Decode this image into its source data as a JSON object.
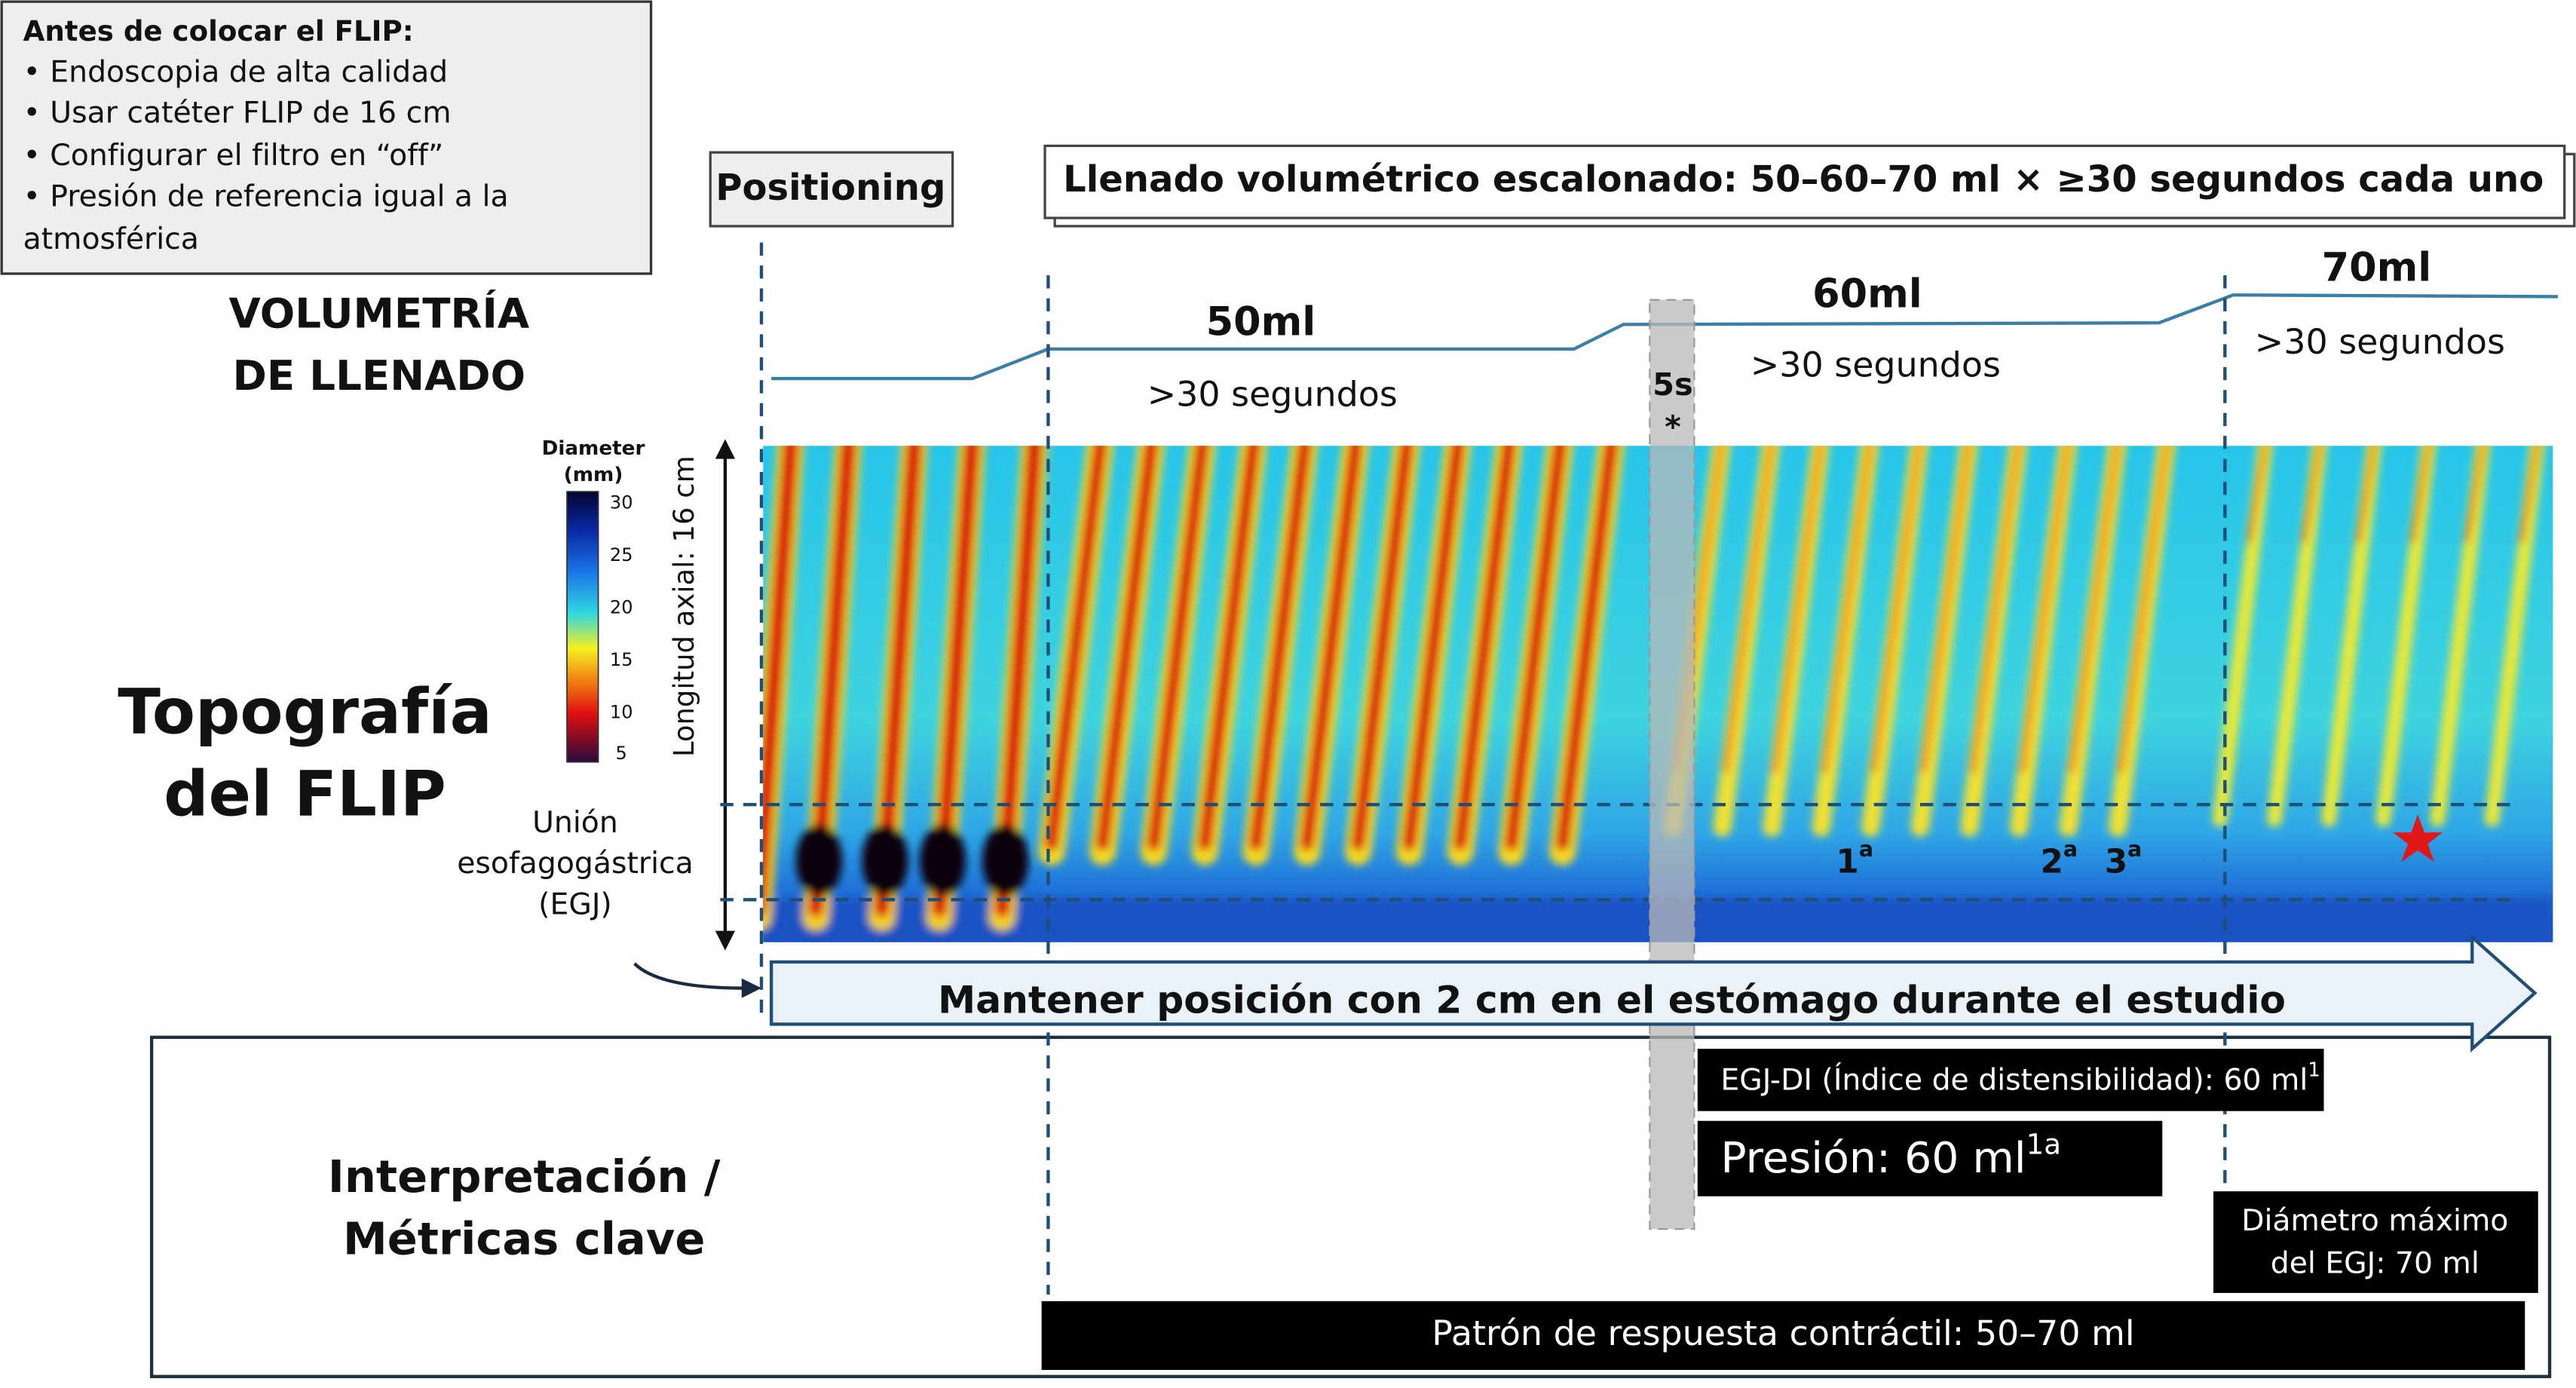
{
  "pre_checklist": {
    "title": "Antes de colocar el FLIP:",
    "lines": [
      "• Endoscopia de alta calidad",
      "• Usar catéter FLIP de 16 cm",
      "• Configurar el filtro en “off”",
      "• Presión de referencia igual a la",
      "atmosférica"
    ]
  },
  "positioning": "Positioning",
  "filling_banner": "Llenado volumétrico escalonado: 50–60–70 ml × ≥30 segundos cada uno",
  "volumetry": {
    "label": [
      "VOLUMETRÍA",
      "DE LLENADO"
    ],
    "steps": [
      {
        "volume": "50ml",
        "duration": ">30 segundos"
      },
      {
        "volume": "60ml",
        "duration": ">30 segundos"
      },
      {
        "volume": "70ml",
        "duration": ">30 segundos"
      }
    ]
  },
  "pause": {
    "duration": "5s",
    "marker": "*"
  },
  "topography": {
    "label": [
      "Topografía",
      "del FLIP"
    ],
    "axis_label": "Longitud axial: 16 cm",
    "colorbar": {
      "title": [
        "Diameter",
        "(mm)"
      ],
      "ticks": [
        30,
        25,
        20,
        15,
        10,
        5
      ]
    },
    "egj_label": [
      "Unión",
      "esofagogástrica",
      "(EGJ)"
    ],
    "contraction_marks": [
      {
        "label": "1",
        "superscript": "a"
      },
      {
        "label": "2",
        "superscript": "a"
      },
      {
        "label": "3",
        "superscript": "a"
      }
    ]
  },
  "position_arrow": "Mantener posición con 2 cm en el estómago durante el estudio",
  "metrics": {
    "label": [
      "Interpretación /",
      "Métricas clave"
    ],
    "egj_di": {
      "text": "EGJ-DI (Índice de distensibilidad): 60 ml",
      "superscript": "1"
    },
    "pressure": {
      "text": "Presión: 60 ml",
      "superscript": "1a"
    },
    "max_diameter": [
      "Diámetro máximo",
      "del EGJ: 70 ml"
    ],
    "contractile_pattern": "Patrón de respuesta contráctil: 50–70 ml"
  }
}
